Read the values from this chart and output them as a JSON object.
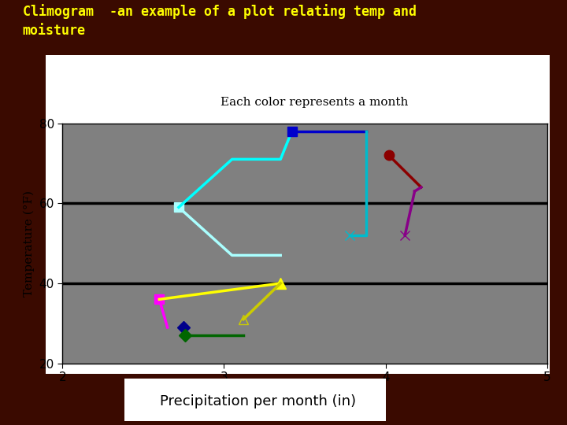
{
  "title": "Climogram  -an example of a plot relating temp and\nmoisture",
  "subtitle": "Each color represents a month",
  "xlabel": "Precipitation per month (in)",
  "ylabel": "Temperature (°F)",
  "xlim": [
    2,
    5
  ],
  "ylim": [
    20,
    80
  ],
  "xticks": [
    2,
    3,
    4,
    5
  ],
  "yticks": [
    20,
    40,
    60,
    80
  ],
  "bg_color": "#808080",
  "outer_bg": "#3a0a00",
  "hlines": [
    40,
    60
  ],
  "series": [
    {
      "name": "lightcyan_line",
      "color": "#aaffff",
      "x": [
        2.72,
        2.72,
        3.05,
        3.35
      ],
      "y": [
        59,
        59,
        47,
        47
      ],
      "marker": "s",
      "markersize": 8,
      "markerfacecolor": "#aaffff",
      "linewidth": 2.5,
      "linestyle": "-",
      "marker_at": 1
    },
    {
      "name": "cyan_line",
      "color": "#00ffff",
      "x": [
        2.72,
        3.05,
        3.35,
        3.42
      ],
      "y": [
        59,
        71,
        71,
        78
      ],
      "marker": "None",
      "linewidth": 2.5,
      "linestyle": "-"
    },
    {
      "name": "dark_blue_line",
      "color": "#0000cc",
      "x": [
        3.42,
        3.88
      ],
      "y": [
        78,
        78
      ],
      "marker": "s",
      "markersize": 8,
      "markerfacecolor": "#0000cc",
      "linewidth": 2.5,
      "linestyle": "-",
      "marker_at": 0
    },
    {
      "name": "dark_cyan_line",
      "color": "#00bbcc",
      "x": [
        3.88,
        3.88,
        3.78
      ],
      "y": [
        78,
        52,
        52
      ],
      "marker": "x",
      "markersize": 9,
      "markerfacecolor": "#00bbcc",
      "linewidth": 2.5,
      "linestyle": "-",
      "marker_at": 2
    },
    {
      "name": "darkred_line",
      "color": "#8b0000",
      "x": [
        4.02,
        4.22
      ],
      "y": [
        72,
        64
      ],
      "marker": "o",
      "markersize": 9,
      "markerfacecolor": "#8b0000",
      "linewidth": 2.5,
      "linestyle": "-",
      "marker_at": 0
    },
    {
      "name": "purple_line",
      "color": "#880088",
      "x": [
        4.22,
        4.18
      ],
      "y": [
        64,
        63
      ],
      "marker": "None",
      "linewidth": 2.5,
      "linestyle": "-"
    },
    {
      "name": "purple_line2",
      "color": "#880088",
      "x": [
        4.18,
        4.12
      ],
      "y": [
        63,
        52
      ],
      "marker": "x",
      "markersize": 9,
      "markerfacecolor": "#880088",
      "linewidth": 2.5,
      "linestyle": "-",
      "marker_at": 1
    },
    {
      "name": "magenta_line",
      "color": "#ff00ff",
      "x": [
        2.6,
        2.65
      ],
      "y": [
        36,
        29
      ],
      "marker": "s",
      "markersize": 9,
      "markerfacecolor": "#ff00ff",
      "linewidth": 2.5,
      "linestyle": "-",
      "marker_at": 0
    },
    {
      "name": "darknavy_diamond",
      "color": "#00008b",
      "x": [
        2.75
      ],
      "y": [
        29
      ],
      "marker": "D",
      "markersize": 8,
      "markerfacecolor": "#00008b",
      "linewidth": 0,
      "linestyle": "None"
    },
    {
      "name": "green_line",
      "color": "#006600",
      "x": [
        2.76,
        3.12
      ],
      "y": [
        27,
        27
      ],
      "marker": "D",
      "markersize": 8,
      "markerfacecolor": "#006600",
      "linewidth": 2.5,
      "linestyle": "-",
      "marker_at": 0
    },
    {
      "name": "yellow_line",
      "color": "#ffff00",
      "x": [
        2.6,
        3.35
      ],
      "y": [
        36,
        40
      ],
      "marker": "^",
      "markersize": 10,
      "markerfacecolor": "#ffff00",
      "linewidth": 2.5,
      "linestyle": "-",
      "marker_at": 1
    },
    {
      "name": "yellowgreen_line",
      "color": "#cccc00",
      "x": [
        3.35,
        3.12
      ],
      "y": [
        40,
        31
      ],
      "marker": "^",
      "markersize": 8,
      "markerfacecolor": "none",
      "linewidth": 2.5,
      "linestyle": "-",
      "marker_at": 1,
      "markerfill": "none"
    }
  ]
}
